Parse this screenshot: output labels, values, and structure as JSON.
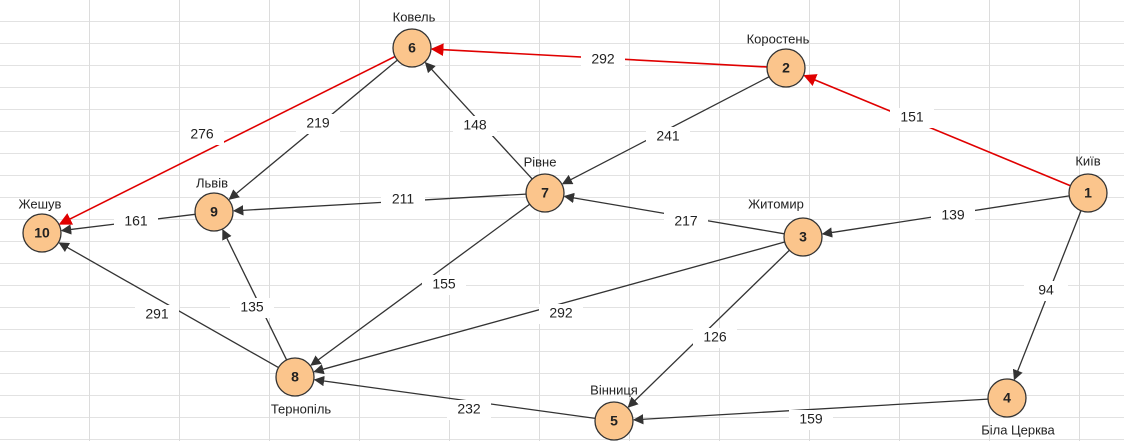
{
  "nodes": [
    {
      "id": "1",
      "name": "Київ"
    },
    {
      "id": "2",
      "name": "Коростень"
    },
    {
      "id": "3",
      "name": "Житомир"
    },
    {
      "id": "4",
      "name": "Біла Церква"
    },
    {
      "id": "5",
      "name": "Вінниця"
    },
    {
      "id": "6",
      "name": "Ковель"
    },
    {
      "id": "7",
      "name": "Рівне"
    },
    {
      "id": "8",
      "name": "Тернопіль"
    },
    {
      "id": "9",
      "name": "Львів"
    },
    {
      "id": "10",
      "name": "Жешув"
    }
  ],
  "edges": [
    {
      "from": "1",
      "to": "2",
      "weight": "151",
      "color": "#e00000"
    },
    {
      "from": "2",
      "to": "6",
      "weight": "292",
      "color": "#e00000"
    },
    {
      "from": "6",
      "to": "10",
      "weight": "276",
      "color": "#e00000"
    },
    {
      "from": "6",
      "to": "9",
      "weight": "219",
      "color": "#333333"
    },
    {
      "from": "7",
      "to": "6",
      "weight": "148",
      "color": "#333333"
    },
    {
      "from": "2",
      "to": "7",
      "weight": "241",
      "color": "#333333"
    },
    {
      "from": "7",
      "to": "9",
      "weight": "211",
      "color": "#333333"
    },
    {
      "from": "3",
      "to": "7",
      "weight": "217",
      "color": "#333333"
    },
    {
      "from": "1",
      "to": "3",
      "weight": "139",
      "color": "#333333"
    },
    {
      "from": "9",
      "to": "10",
      "weight": "161",
      "color": "#333333"
    },
    {
      "from": "1",
      "to": "4",
      "weight": "94",
      "color": "#333333"
    },
    {
      "from": "3",
      "to": "8",
      "weight": "292",
      "color": "#333333"
    },
    {
      "from": "7",
      "to": "8",
      "weight": "155",
      "color": "#333333"
    },
    {
      "from": "8",
      "to": "9",
      "weight": "135",
      "color": "#333333"
    },
    {
      "from": "8",
      "to": "10",
      "weight": "291",
      "color": "#333333"
    },
    {
      "from": "3",
      "to": "5",
      "weight": "126",
      "color": "#333333"
    },
    {
      "from": "5",
      "to": "8",
      "weight": "232",
      "color": "#333333"
    },
    {
      "from": "4",
      "to": "5",
      "weight": "159",
      "color": "#333333"
    }
  ]
}
